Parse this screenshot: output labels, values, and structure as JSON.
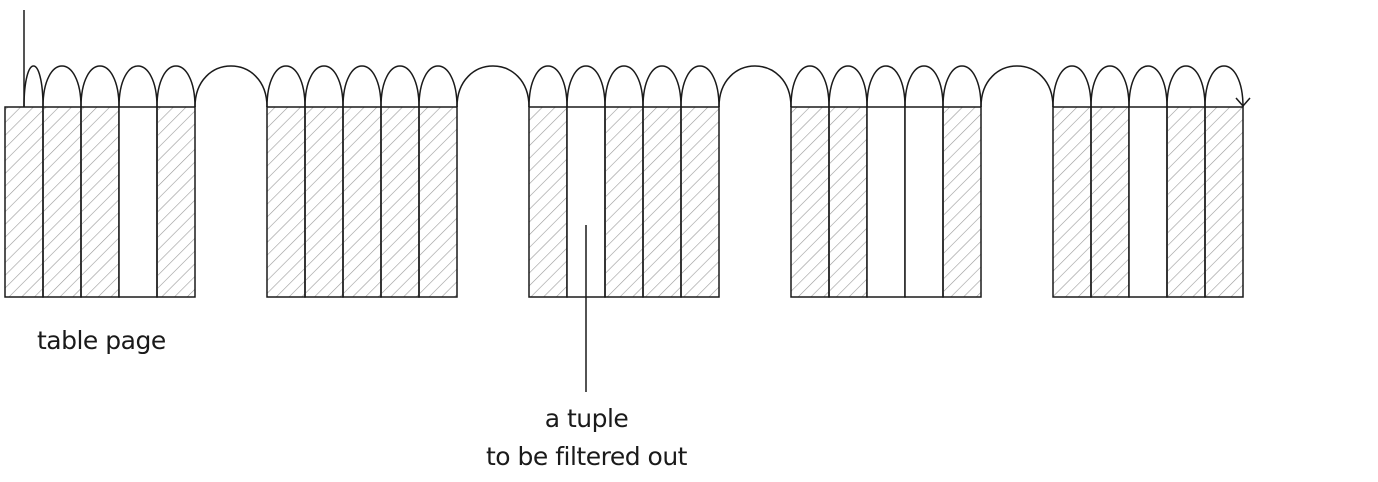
{
  "labels": {
    "table_page": "table page",
    "tuple_line1": "a tuple",
    "tuple_line2": "to be filtered out"
  },
  "pages": [
    {
      "tuples": [
        "visible",
        "visible",
        "visible",
        "filtered",
        "visible"
      ]
    },
    {
      "tuples": [
        "visible",
        "visible",
        "visible",
        "visible",
        "visible"
      ]
    },
    {
      "tuples": [
        "visible",
        "filtered",
        "visible",
        "visible",
        "visible"
      ]
    },
    {
      "tuples": [
        "visible",
        "visible",
        "filtered",
        "filtered",
        "visible"
      ]
    },
    {
      "tuples": [
        "visible",
        "visible",
        "filtered",
        "visible",
        "visible"
      ]
    }
  ],
  "colors": {
    "stroke": "#1a1a1a",
    "hatch": "#9a9a9a",
    "background": "#ffffff"
  }
}
